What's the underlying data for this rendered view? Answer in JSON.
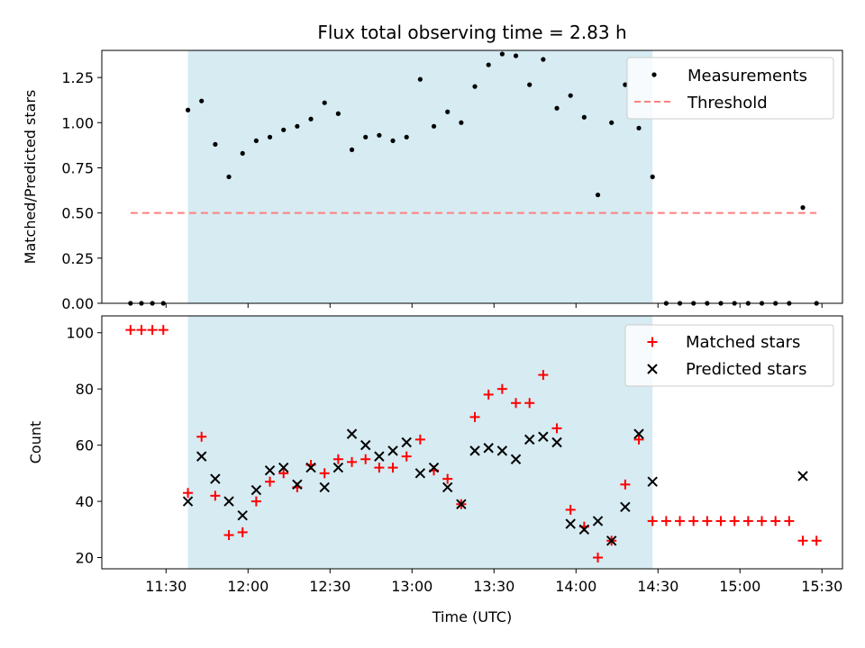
{
  "chart_data": [
    {
      "type": "scatter",
      "title": "Flux total observing time = 2.83 h",
      "xlabel": "",
      "ylabel": "Matched/Predicted stars",
      "ylim": [
        0,
        1.4
      ],
      "yticks": [
        "0.00",
        "0.25",
        "0.50",
        "0.75",
        "1.00",
        "1.25"
      ],
      "shaded_span": [
        "11:38",
        "14:28"
      ],
      "shade_color": "#add8e6",
      "legend": {
        "placement": "upper right",
        "entries": [
          "Measurements",
          "Threshold"
        ]
      },
      "series": [
        {
          "name": "Measurements",
          "marker": "dot",
          "color": "#000000",
          "x": [
            "11:17",
            "11:21",
            "11:25",
            "11:29",
            "11:38",
            "11:43",
            "11:48",
            "11:53",
            "11:58",
            "12:03",
            "12:08",
            "12:13",
            "12:18",
            "12:23",
            "12:28",
            "12:33",
            "12:38",
            "12:43",
            "12:48",
            "12:53",
            "12:58",
            "13:03",
            "13:08",
            "13:13",
            "13:18",
            "13:23",
            "13:28",
            "13:33",
            "13:38",
            "13:43",
            "13:48",
            "13:53",
            "13:58",
            "14:03",
            "14:08",
            "14:13",
            "14:18",
            "14:23",
            "14:28",
            "14:33",
            "14:38",
            "14:43",
            "14:48",
            "14:53",
            "14:58",
            "15:03",
            "15:08",
            "15:13",
            "15:18",
            "15:23",
            "15:28"
          ],
          "y": [
            0,
            0,
            0,
            0,
            1.07,
            1.12,
            0.88,
            0.7,
            0.83,
            0.9,
            0.92,
            0.96,
            0.98,
            1.02,
            1.11,
            1.05,
            0.85,
            0.92,
            0.93,
            0.9,
            0.92,
            1.24,
            0.98,
            1.06,
            1.0,
            1.2,
            1.32,
            1.38,
            1.37,
            1.21,
            1.35,
            1.08,
            1.15,
            1.03,
            0.6,
            1.0,
            1.21,
            0.97,
            0.7,
            0,
            0,
            0,
            0,
            0,
            0,
            0,
            0,
            0,
            0,
            0.53,
            0
          ]
        },
        {
          "name": "Threshold",
          "style": "dashed",
          "color": "#ff7f7f",
          "x": [
            "11:17",
            "15:28"
          ],
          "y": [
            0.5,
            0.5
          ]
        }
      ]
    },
    {
      "type": "scatter",
      "title": "",
      "xlabel": "Time (UTC)",
      "ylabel": "Count",
      "ylim": [
        16,
        106
      ],
      "yticks": [
        "20",
        "40",
        "60",
        "80",
        "100"
      ],
      "xticks": [
        "11:30",
        "12:00",
        "12:30",
        "13:00",
        "13:30",
        "14:00",
        "14:30",
        "15:00",
        "15:30"
      ],
      "shaded_span": [
        "11:38",
        "14:28"
      ],
      "shade_color": "#add8e6",
      "legend": {
        "placement": "upper right",
        "entries": [
          "Matched stars",
          "Predicted stars"
        ]
      },
      "series": [
        {
          "name": "Matched stars",
          "marker": "plus",
          "color": "#ff0000",
          "x": [
            "11:17",
            "11:21",
            "11:25",
            "11:29",
            "11:38",
            "11:43",
            "11:48",
            "11:53",
            "11:58",
            "12:03",
            "12:08",
            "12:13",
            "12:18",
            "12:23",
            "12:28",
            "12:33",
            "12:38",
            "12:43",
            "12:48",
            "12:53",
            "12:58",
            "13:03",
            "13:08",
            "13:13",
            "13:18",
            "13:23",
            "13:28",
            "13:33",
            "13:38",
            "13:43",
            "13:48",
            "13:53",
            "13:58",
            "14:03",
            "14:08",
            "14:13",
            "14:18",
            "14:23",
            "14:28",
            "14:33",
            "14:38",
            "14:43",
            "14:48",
            "14:53",
            "14:58",
            "15:03",
            "15:08",
            "15:13",
            "15:18",
            "15:23",
            "15:28"
          ],
          "y": [
            101,
            101,
            101,
            101,
            43,
            63,
            42,
            28,
            29,
            40,
            47,
            50,
            45,
            53,
            50,
            55,
            54,
            55,
            52,
            52,
            56,
            62,
            51,
            48,
            39,
            70,
            78,
            80,
            75,
            75,
            85,
            66,
            37,
            31,
            20,
            26,
            46,
            62,
            33,
            33,
            33,
            33,
            33,
            33,
            33,
            33,
            33,
            33,
            33,
            26,
            26
          ]
        },
        {
          "name": "Predicted stars",
          "marker": "x",
          "color": "#000000",
          "x": [
            "11:38",
            "11:43",
            "11:48",
            "11:53",
            "11:58",
            "12:03",
            "12:08",
            "12:13",
            "12:18",
            "12:23",
            "12:28",
            "12:33",
            "12:38",
            "12:43",
            "12:48",
            "12:53",
            "12:58",
            "13:03",
            "13:08",
            "13:13",
            "13:18",
            "13:23",
            "13:28",
            "13:33",
            "13:38",
            "13:43",
            "13:48",
            "13:53",
            "13:58",
            "14:03",
            "14:08",
            "14:13",
            "14:18",
            "14:23",
            "14:28",
            "15:23"
          ],
          "y": [
            40,
            56,
            48,
            40,
            35,
            44,
            51,
            52,
            46,
            52,
            45,
            52,
            64,
            60,
            56,
            58,
            61,
            50,
            52,
            45,
            39,
            58,
            59,
            58,
            55,
            62,
            63,
            61,
            32,
            30,
            33,
            26,
            38,
            64,
            47,
            49
          ]
        }
      ]
    }
  ]
}
